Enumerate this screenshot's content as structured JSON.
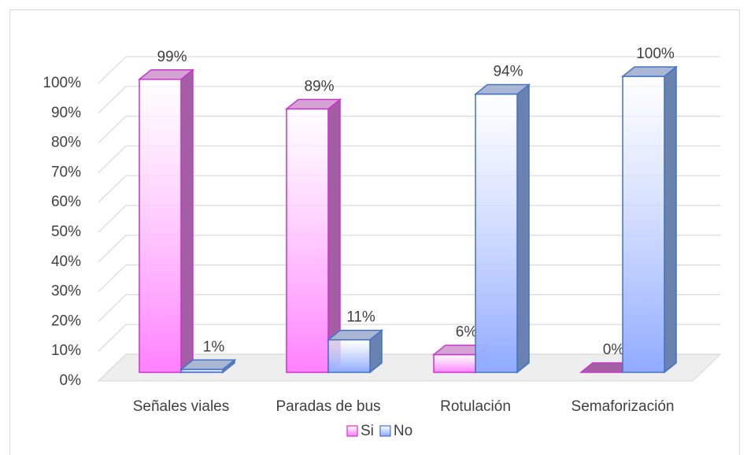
{
  "chart_data": {
    "type": "bar3d",
    "categories": [
      "Señales viales",
      "Paradas de bus",
      "Rotulación",
      "Semaforización"
    ],
    "series": [
      {
        "name": "Si",
        "color": "#ff80ff",
        "values": [
          99,
          89,
          6,
          0
        ],
        "value_labels": [
          "99%",
          "89%",
          "6%",
          "0%"
        ]
      },
      {
        "name": "No",
        "color": "#8faaff",
        "values": [
          1,
          11,
          94,
          100
        ],
        "value_labels": [
          "1%",
          "11%",
          "94%",
          "100%"
        ]
      }
    ],
    "ylim": [
      0,
      100
    ],
    "yticks": [
      {
        "value": 0,
        "label": "0%"
      },
      {
        "value": 10,
        "label": "10%"
      },
      {
        "value": 20,
        "label": "20%"
      },
      {
        "value": 30,
        "label": "30%"
      },
      {
        "value": 40,
        "label": "40%"
      },
      {
        "value": 50,
        "label": "50%"
      },
      {
        "value": 60,
        "label": "60%"
      },
      {
        "value": 70,
        "label": "70%"
      },
      {
        "value": 80,
        "label": "80%"
      },
      {
        "value": 90,
        "label": "90%"
      },
      {
        "value": 100,
        "label": "100%"
      }
    ],
    "grid": true,
    "legend": "bottom"
  }
}
